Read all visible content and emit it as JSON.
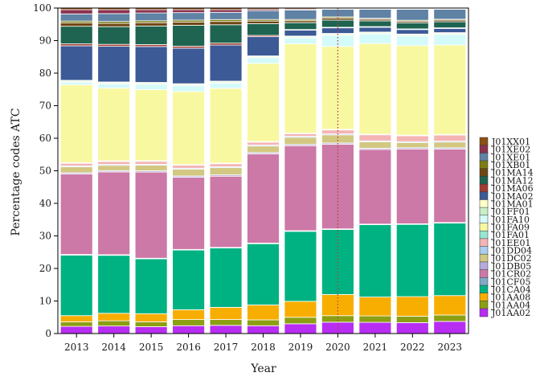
{
  "chart_data": {
    "type": "bar",
    "stacked": true,
    "title": "",
    "xlabel": "Year",
    "ylabel": "Percentage codes ATC",
    "ylim": [
      0,
      100
    ],
    "yticks": [
      0,
      10,
      20,
      30,
      40,
      50,
      60,
      70,
      80,
      90,
      100
    ],
    "grid": false,
    "legend_position": "right",
    "reference_line": {
      "x": "2020",
      "style": "dotted",
      "color": "#b04040"
    },
    "categories": [
      "2013",
      "2014",
      "2015",
      "2016",
      "2017",
      "2018",
      "2019",
      "2020",
      "2021",
      "2022",
      "2023"
    ],
    "series": [
      {
        "name": "J01AA02",
        "color": "#b72df2",
        "values": [
          2.2,
          2.3,
          2.1,
          2.4,
          2.5,
          2.4,
          3.0,
          3.5,
          3.5,
          3.4,
          3.8
        ]
      },
      {
        "name": "J01AA04",
        "color": "#8c9f12",
        "values": [
          1.4,
          1.6,
          1.5,
          1.9,
          1.8,
          1.8,
          2.0,
          2.0,
          2.0,
          2.0,
          2.0
        ]
      },
      {
        "name": "J01AA08",
        "color": "#f8ae00",
        "values": [
          1.9,
          2.3,
          2.5,
          3.0,
          3.7,
          4.6,
          4.9,
          6.5,
          5.9,
          6.1,
          6.1
        ]
      },
      {
        "name": "J01CA04",
        "color": "#00b282",
        "values": [
          18.6,
          17.7,
          16.8,
          18.3,
          18.1,
          18.8,
          21.5,
          20.0,
          22.6,
          22.5,
          22.7
        ]
      },
      {
        "name": "J01CF05",
        "color": "#82aac8",
        "values": [
          0.2,
          0.2,
          0.2,
          0.2,
          0.2,
          0.2,
          0.2,
          0.2,
          0.2,
          0.2,
          0.2
        ]
      },
      {
        "name": "J01CR02",
        "color": "#cc79a7",
        "values": [
          24.7,
          25.3,
          26.4,
          22.1,
          21.7,
          27.4,
          26.1,
          26.0,
          23.3,
          23.3,
          23.0
        ]
      },
      {
        "name": "J01DB05",
        "color": "#b4aadc",
        "values": [
          0.4,
          0.4,
          0.4,
          0.4,
          0.4,
          0.4,
          0.4,
          0.4,
          0.4,
          0.4,
          0.4
        ]
      },
      {
        "name": "J01DC02",
        "color": "#d2c882",
        "values": [
          1.8,
          1.6,
          1.7,
          2.1,
          2.2,
          2.0,
          2.2,
          2.5,
          2.0,
          1.6,
          1.8
        ]
      },
      {
        "name": "J01DD04",
        "color": "#aacdf0",
        "values": [
          0.3,
          0.3,
          0.3,
          0.3,
          0.3,
          0.3,
          0.3,
          0.3,
          0.3,
          0.3,
          0.3
        ]
      },
      {
        "name": "J01EE01",
        "color": "#f5b4b4",
        "values": [
          0.8,
          0.9,
          0.9,
          0.9,
          0.9,
          0.9,
          0.8,
          1.2,
          1.9,
          1.8,
          1.9
        ]
      },
      {
        "name": "J01FA01",
        "color": "#96e6d2",
        "values": [
          0.2,
          0.2,
          0.2,
          0.2,
          0.2,
          0.2,
          0.2,
          0.2,
          0.2,
          0.2,
          0.2
        ]
      },
      {
        "name": "J01FA09",
        "color": "#f8f8a0",
        "values": [
          23.9,
          22.2,
          21.8,
          22.4,
          22.8,
          24.0,
          27.4,
          25.5,
          28.3,
          27.9,
          28.0
        ]
      },
      {
        "name": "J01FA10",
        "color": "#d4fafa",
        "values": [
          0.8,
          1.3,
          1.6,
          1.8,
          1.6,
          1.7,
          1.8,
          3.4,
          3.0,
          3.0,
          3.3
        ]
      },
      {
        "name": "J01FF01",
        "color": "#c8f0c8",
        "values": [
          0.3,
          0.3,
          0.3,
          0.3,
          0.3,
          0.3,
          0.3,
          0.3,
          0.3,
          0.3,
          0.3
        ]
      },
      {
        "name": "J01MA01",
        "color": "#ffffc8",
        "values": [
          0.3,
          0.3,
          0.3,
          0.3,
          0.3,
          0.3,
          0.3,
          0.3,
          0.3,
          0.3,
          0.3
        ]
      },
      {
        "name": "J01MA02",
        "color": "#3c5a96",
        "values": [
          10.6,
          10.9,
          11.0,
          10.9,
          11.0,
          5.9,
          1.8,
          1.7,
          1.5,
          1.4,
          1.3
        ]
      },
      {
        "name": "J01MA06",
        "color": "#a03c32",
        "values": [
          0.6,
          0.6,
          0.6,
          0.6,
          0.6,
          0.4,
          0.2,
          0.2,
          0.2,
          0.2,
          0.2
        ]
      },
      {
        "name": "J01MA12",
        "color": "#1e6450",
        "values": [
          5.4,
          5.4,
          5.7,
          6.4,
          5.6,
          3.6,
          2.1,
          2.2,
          1.8,
          1.9,
          1.9
        ]
      },
      {
        "name": "J01MA14",
        "color": "#6e4614",
        "values": [
          1.0,
          1.0,
          1.0,
          1.0,
          1.0,
          0.8,
          0.6,
          0.6,
          0.5,
          0.5,
          0.5
        ]
      },
      {
        "name": "J01XB01",
        "color": "#7d7d14",
        "values": [
          0.6,
          0.6,
          0.6,
          0.6,
          0.6,
          0.5,
          0.4,
          0.4,
          0.3,
          0.3,
          0.3
        ]
      },
      {
        "name": "J01XE01",
        "color": "#5f82a5",
        "values": [
          2.2,
          2.4,
          2.4,
          2.3,
          2.2,
          2.7,
          2.9,
          2.3,
          2.8,
          3.4,
          3.1
        ]
      },
      {
        "name": "J01XE02",
        "color": "#8c3250",
        "values": [
          1.3,
          1.2,
          1.0,
          0.9,
          0.8,
          0.4,
          0.3,
          0.2,
          0.2,
          0.2,
          0.2
        ]
      },
      {
        "name": "J01XX01",
        "color": "#8c5014",
        "values": [
          0.5,
          0.5,
          0.5,
          0.5,
          0.5,
          0.4,
          0.3,
          0.2,
          0.2,
          0.2,
          0.2
        ]
      }
    ]
  }
}
